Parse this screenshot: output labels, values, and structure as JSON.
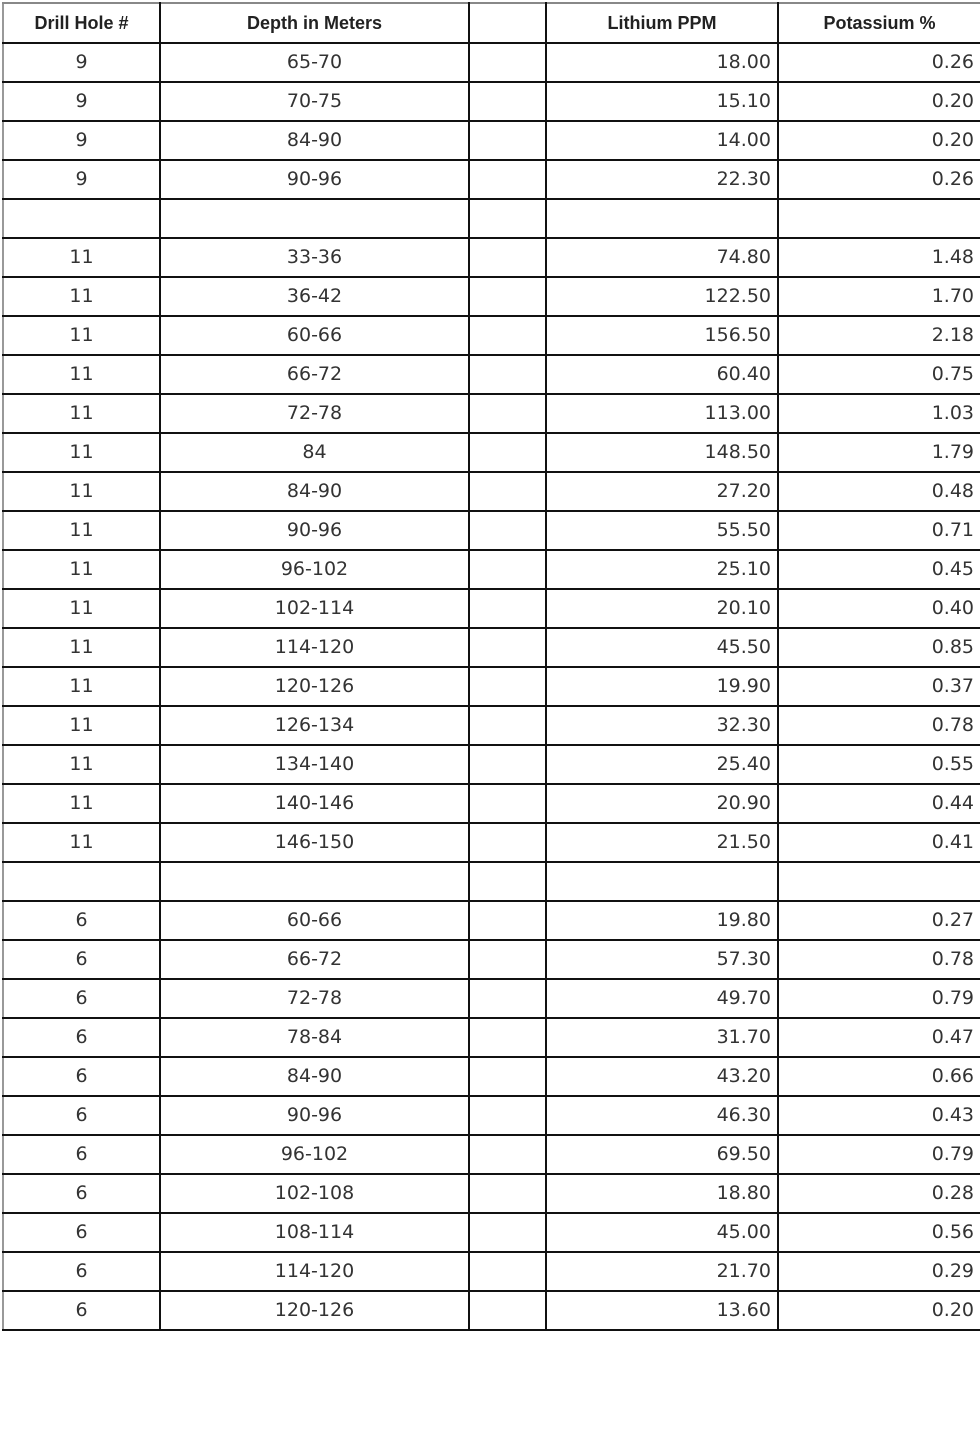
{
  "table": {
    "headers": [
      "Drill Hole #",
      "Depth in Meters",
      "",
      "Lithium PPM",
      "Potassium %"
    ],
    "rows": [
      [
        "9",
        "65-70",
        "",
        "18.00",
        "0.26"
      ],
      [
        "9",
        "70-75",
        "",
        "15.10",
        "0.20"
      ],
      [
        "9",
        "84-90",
        "",
        "14.00",
        "0.20"
      ],
      [
        "9",
        "90-96",
        "",
        "22.30",
        "0.26"
      ],
      [
        "",
        "",
        "",
        "",
        ""
      ],
      [
        "11",
        "33-36",
        "",
        "74.80",
        "1.48"
      ],
      [
        "11",
        "36-42",
        "",
        "122.50",
        "1.70"
      ],
      [
        "11",
        "60-66",
        "",
        "156.50",
        "2.18"
      ],
      [
        "11",
        "66-72",
        "",
        "60.40",
        "0.75"
      ],
      [
        "11",
        "72-78",
        "",
        "113.00",
        "1.03"
      ],
      [
        "11",
        "84",
        "",
        "148.50",
        "1.79"
      ],
      [
        "11",
        "84-90",
        "",
        "27.20",
        "0.48"
      ],
      [
        "11",
        "90-96",
        "",
        "55.50",
        "0.71"
      ],
      [
        "11",
        "96-102",
        "",
        "25.10",
        "0.45"
      ],
      [
        "11",
        "102-114",
        "",
        "20.10",
        "0.40"
      ],
      [
        "11",
        "114-120",
        "",
        "45.50",
        "0.85"
      ],
      [
        "11",
        "120-126",
        "",
        "19.90",
        "0.37"
      ],
      [
        "11",
        "126-134",
        "",
        "32.30",
        "0.78"
      ],
      [
        "11",
        "134-140",
        "",
        "25.40",
        "0.55"
      ],
      [
        "11",
        "140-146",
        "",
        "20.90",
        "0.44"
      ],
      [
        "11",
        "146-150",
        "",
        "21.50",
        "0.41"
      ],
      [
        "",
        "",
        "",
        "",
        ""
      ],
      [
        "6",
        "60-66",
        "",
        "19.80",
        "0.27"
      ],
      [
        "6",
        "66-72",
        "",
        "57.30",
        "0.78"
      ],
      [
        "6",
        "72-78",
        "",
        "49.70",
        "0.79"
      ],
      [
        "6",
        "78-84",
        "",
        "31.70",
        "0.47"
      ],
      [
        "6",
        "84-90",
        "",
        "43.20",
        "0.66"
      ],
      [
        "6",
        "90-96",
        "",
        "46.30",
        "0.43"
      ],
      [
        "6",
        "96-102",
        "",
        "69.50",
        "0.79"
      ],
      [
        "6",
        "102-108",
        "",
        "18.80",
        "0.28"
      ],
      [
        "6",
        "108-114",
        "",
        "45.00",
        "0.56"
      ],
      [
        "6",
        "114-120",
        "",
        "21.70",
        "0.29"
      ],
      [
        "6",
        "120-126",
        "",
        "13.60",
        "0.20"
      ]
    ]
  }
}
